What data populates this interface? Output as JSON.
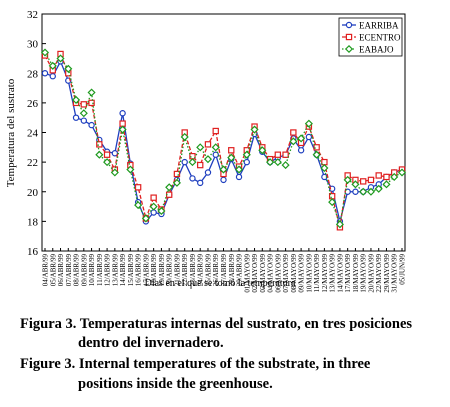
{
  "chart_data": {
    "type": "line",
    "ylabel": "Temperatura del sustrato",
    "xlabel": "Dias en el que se tomó la temperatura",
    "categories": [
      "04/ABR/99",
      "05/ABR/99",
      "06/ABR/99",
      "07/ABR/99",
      "08/ABR/99",
      "09/ABR/99",
      "10/ABR/99",
      "11/ABR/99",
      "12/ABR/99",
      "13/ABR/99",
      "14/ABR/99",
      "15/ABR/99",
      "16/ABR/99",
      "17/ABR/99",
      "18/ABR/99",
      "19/ABR/99",
      "20/ABR/99",
      "21/ABR/99",
      "22/ABR/99",
      "23/ABR/99",
      "24/ABR/99",
      "25/ABR/99",
      "26/ABR/99",
      "27/ABR/99",
      "28/ABR/99",
      "29/ABR/99",
      "01/MAYO/99",
      "02/MAYO/99",
      "03/MAYO/99",
      "04/MAYO/99",
      "06/MAYO/99",
      "07/MAYO/99",
      "08/MAYO/99",
      "09/MAYO/99",
      "10/MAYO/99",
      "11/MAYO/99",
      "12/MAYO/99",
      "13/MAYO/99",
      "14/MAYO/99",
      "17/MAYO/99",
      "18/MAYO/99",
      "19/MAYO/99",
      "20/MAYO/99",
      "22/MAYO/99",
      "29/MAYO/99",
      "31/MAYO/99",
      "05/JUN/99"
    ],
    "series": [
      {
        "name": "EARRIBA",
        "color": "#1f3fbf",
        "marker": "circle",
        "dash": "solid",
        "values": [
          28,
          27.8,
          28.8,
          27.5,
          25,
          24.8,
          24.5,
          23.5,
          22.7,
          22.6,
          25.3,
          21.9,
          19.3,
          18,
          18.6,
          18.5,
          19.8,
          20.8,
          22,
          20.9,
          20.6,
          21.3,
          22.5,
          20.8,
          22.2,
          21,
          22,
          23.9,
          22.7,
          22,
          22.3,
          22.5,
          23.6,
          22.8,
          23.7,
          22.5,
          21,
          20.2,
          18,
          20,
          20,
          20,
          20.3,
          20.5,
          21,
          21.3,
          21.5
        ]
      },
      {
        "name": "ECENTRO",
        "color": "#e02020",
        "marker": "square",
        "dash": "dashed",
        "values": [
          29.2,
          28.2,
          29.3,
          28,
          26,
          25.9,
          26,
          23.2,
          22.5,
          21.5,
          24.6,
          21.8,
          20.3,
          18.2,
          19.6,
          18.8,
          19.8,
          21.2,
          24,
          22.4,
          21.8,
          23.2,
          24.1,
          21.2,
          22.8,
          21.7,
          22.8,
          24.4,
          23,
          22.2,
          22.5,
          22.5,
          24,
          23.3,
          24.4,
          23,
          22,
          19.7,
          17.6,
          21.1,
          20.8,
          20.7,
          20.8,
          21.1,
          21,
          21.3,
          21.5
        ]
      },
      {
        "name": "EABAJO",
        "color": "#1e9a1e",
        "marker": "diamond",
        "dash": "dotted",
        "values": [
          29.4,
          28.5,
          29,
          28.3,
          26.2,
          25.3,
          26.7,
          22.5,
          22,
          21.3,
          24.2,
          21.5,
          19.1,
          18.2,
          19,
          18.7,
          20.3,
          20.6,
          23.7,
          22,
          23,
          22.2,
          23,
          21.5,
          22.3,
          21.5,
          22.5,
          24.2,
          22.8,
          22,
          22,
          21.8,
          23.4,
          23.6,
          24.6,
          22.5,
          21.6,
          19.3,
          17.8,
          20.8,
          20.5,
          20,
          20,
          20.2,
          20.5,
          21,
          21.3
        ]
      }
    ],
    "ylim": [
      16,
      32
    ],
    "yticks": [
      16,
      18,
      20,
      22,
      24,
      26,
      28,
      30,
      32
    ],
    "legend": "top-right",
    "caption": [
      "Figura 3. Temperaturas internas del sustrato, en tres posiciones",
      "dentro del invernadero.",
      "Figure 3. Internal temperatures of the substrate, in three",
      "positions inside the greenhouse."
    ]
  }
}
